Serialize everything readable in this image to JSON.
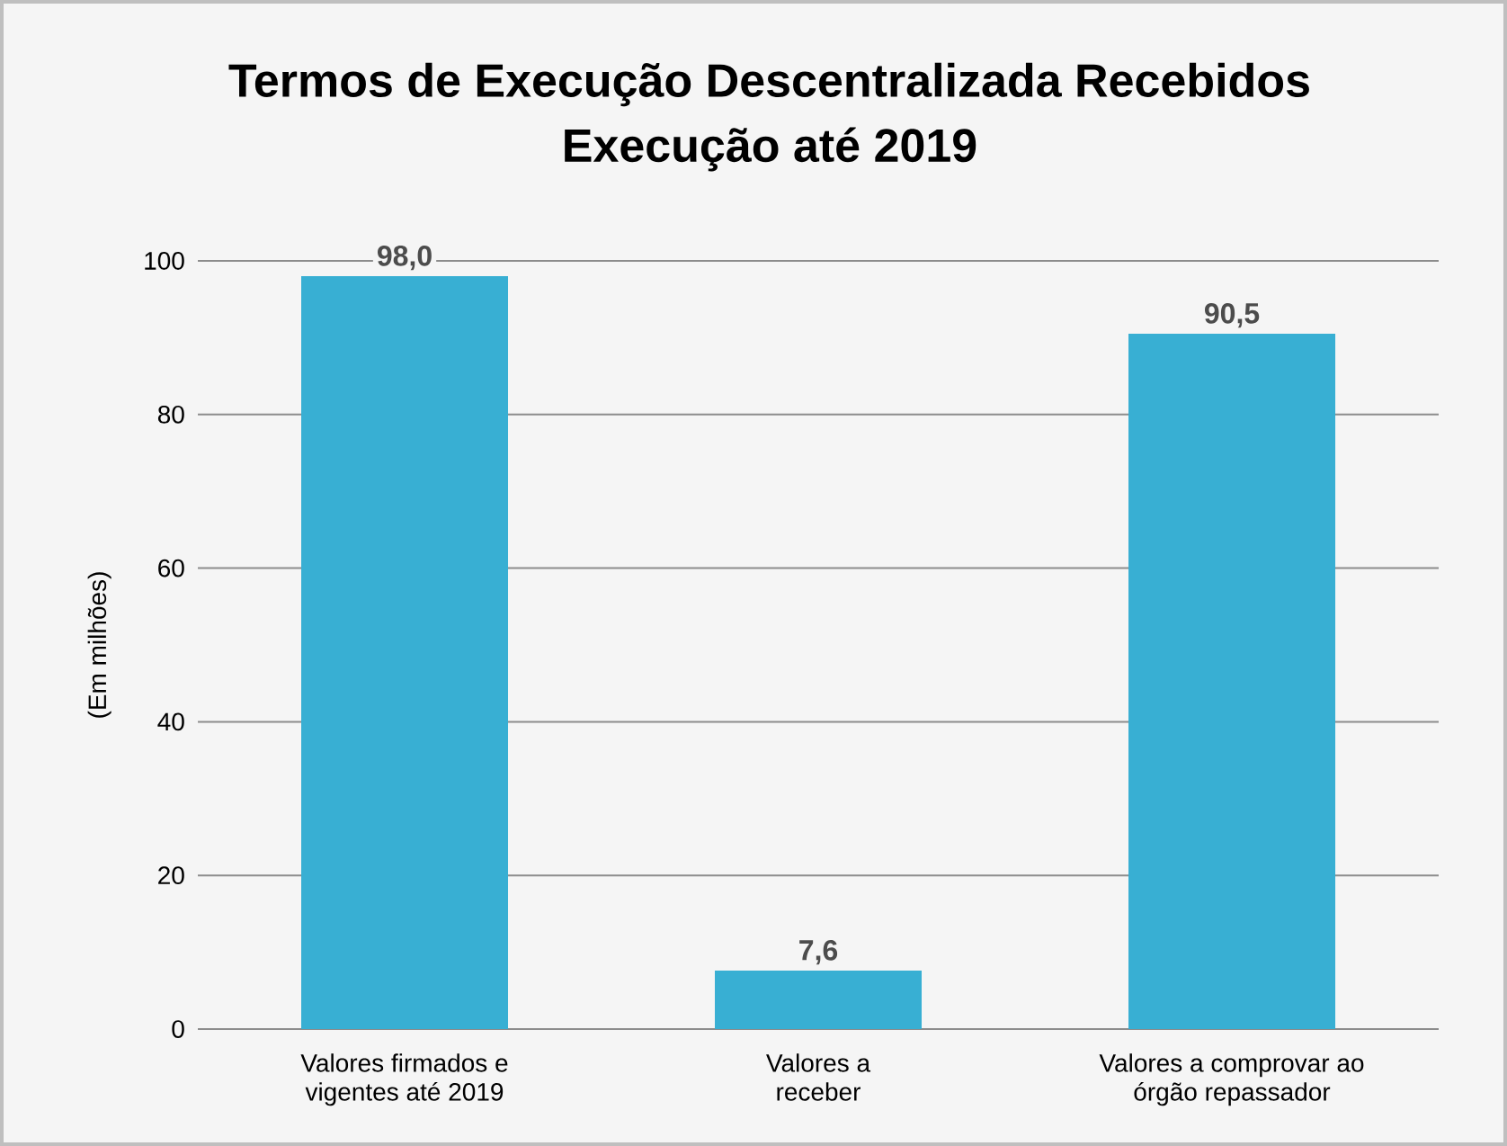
{
  "chart_data": {
    "type": "bar",
    "title": "Termos de Execução Descentralizada Recebidos",
    "subtitle": "Execução até 2019",
    "ylabel": "(Em milhões)",
    "categories": [
      "Valores firmados e vigentes até 2019",
      "Valores a receber",
      "Valores a comprovar ao órgão repassador"
    ],
    "values": [
      98.0,
      7.6,
      90.5
    ],
    "value_labels": [
      "98,0",
      "7,6",
      "90,5"
    ],
    "color": "#38afd3",
    "ylim": [
      0,
      100
    ],
    "yticks": [
      0,
      20,
      40,
      60,
      80,
      100
    ],
    "grid": "y"
  }
}
